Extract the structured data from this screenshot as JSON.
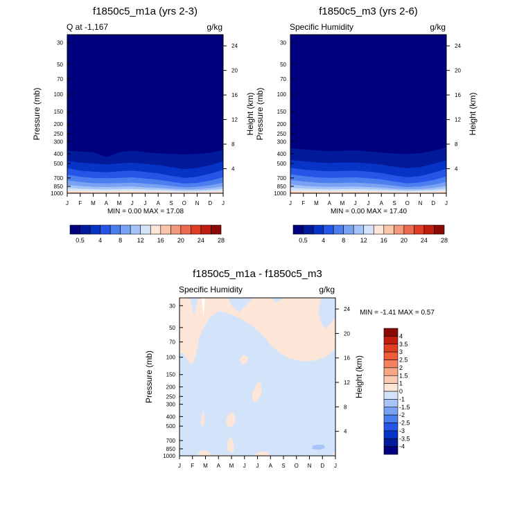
{
  "chart_data": [
    {
      "type": "contour",
      "title": "f1850c5_m1a (yrs 2-3)",
      "left_label": "Q at -1,167",
      "right_label": "g/kg",
      "ylabel": "Pressure (mb)",
      "y2label": "Height (km)",
      "stats": "MIN =   0.00 MAX =  17.08",
      "x_tick_labels": [
        "J",
        "F",
        "M",
        "A",
        "M",
        "J",
        "J",
        "A",
        "S",
        "O",
        "N",
        "D",
        "J"
      ],
      "pressure_ticks": [
        30,
        50,
        70,
        100,
        150,
        200,
        250,
        300,
        400,
        500,
        700,
        850,
        1000
      ],
      "height_ticks": [
        4,
        8,
        12,
        16,
        20,
        24
      ],
      "ylim": [
        25,
        1000
      ],
      "colorbar_labels": [
        "0.5",
        "4",
        "8",
        "12",
        "16",
        "20",
        "24",
        "28"
      ],
      "colorbar_colors": [
        "#00007f",
        "#001a9a",
        "#0733c6",
        "#2555e6",
        "#4d7ef0",
        "#7aa2f3",
        "#a6c4f7",
        "#d3e4fa",
        "#fde6d8",
        "#f9c5ac",
        "#f3987c",
        "#ec6b4e",
        "#e03d25",
        "#be1d10",
        "#8c0a05"
      ],
      "levels": [
        {
          "color": "#001a9a",
          "top_p": [
            370,
            380,
            385,
            430,
            385,
            370,
            385,
            395,
            400,
            405,
            400,
            390,
            365
          ]
        },
        {
          "color": "#0733c6",
          "top_p": [
            470,
            490,
            500,
            510,
            500,
            490,
            505,
            520,
            545,
            570,
            555,
            520,
            475
          ]
        },
        {
          "color": "#2555e6",
          "top_p": [
            560,
            590,
            605,
            615,
            600,
            590,
            610,
            630,
            665,
            700,
            680,
            635,
            580
          ]
        },
        {
          "color": "#4d7ef0",
          "top_p": [
            650,
            680,
            700,
            705,
            700,
            690,
            710,
            730,
            765,
            800,
            785,
            745,
            690
          ]
        },
        {
          "color": "#7aa2f3",
          "top_p": [
            740,
            770,
            790,
            795,
            790,
            780,
            800,
            815,
            845,
            870,
            860,
            830,
            780
          ]
        },
        {
          "color": "#a6c4f7",
          "top_p": [
            820,
            845,
            860,
            865,
            860,
            855,
            870,
            880,
            900,
            915,
            910,
            890,
            855
          ]
        },
        {
          "color": "#d3e4fa",
          "top_p": [
            885,
            900,
            910,
            915,
            910,
            905,
            915,
            920,
            935,
            945,
            940,
            930,
            905
          ]
        },
        {
          "color": "#fde6d8",
          "top_p": [
            940,
            945,
            950,
            955,
            950,
            950,
            955,
            958,
            965,
            970,
            968,
            962,
            950
          ]
        },
        {
          "color": "#f9c5ac",
          "top_p": [
            972,
            975,
            978,
            980,
            978,
            977,
            980,
            982,
            985,
            988,
            987,
            984,
            978
          ]
        },
        {
          "color": "#ec6b4e",
          "top_p": [
            990,
            991,
            992,
            993,
            992,
            992,
            993,
            994,
            995,
            996,
            996,
            995,
            992
          ]
        }
      ]
    },
    {
      "type": "contour",
      "title": "f1850c5_m3 (yrs 2-6)",
      "left_label": "Specific Humidity",
      "right_label": "g/kg",
      "ylabel": "Pressure (mb)",
      "y2label": "Height (km)",
      "stats": "MIN =   0.00 MAX =  17.40",
      "x_tick_labels": [
        "J",
        "F",
        "M",
        "A",
        "M",
        "J",
        "J",
        "A",
        "S",
        "O",
        "N",
        "D",
        "J"
      ],
      "pressure_ticks": [
        30,
        50,
        70,
        100,
        150,
        200,
        250,
        300,
        400,
        500,
        700,
        850,
        1000
      ],
      "height_ticks": [
        4,
        8,
        12,
        16,
        20,
        24
      ],
      "ylim": [
        25,
        1000
      ],
      "colorbar_labels": [
        "0.5",
        "4",
        "8",
        "12",
        "16",
        "20",
        "24",
        "28"
      ],
      "colorbar_colors": [
        "#00007f",
        "#001a9a",
        "#0733c6",
        "#2555e6",
        "#4d7ef0",
        "#7aa2f3",
        "#a6c4f7",
        "#d3e4fa",
        "#fde6d8",
        "#f9c5ac",
        "#f3987c",
        "#ec6b4e",
        "#e03d25",
        "#be1d10",
        "#8c0a05"
      ],
      "levels": [
        {
          "color": "#001a9a",
          "top_p": [
            350,
            360,
            368,
            375,
            372,
            368,
            378,
            388,
            398,
            402,
            395,
            372,
            345
          ]
        },
        {
          "color": "#0733c6",
          "top_p": [
            460,
            475,
            488,
            495,
            490,
            488,
            498,
            515,
            540,
            560,
            545,
            505,
            462
          ]
        },
        {
          "color": "#2555e6",
          "top_p": [
            555,
            575,
            590,
            600,
            595,
            590,
            605,
            625,
            660,
            690,
            670,
            620,
            565
          ]
        },
        {
          "color": "#4d7ef0",
          "top_p": [
            645,
            670,
            690,
            700,
            695,
            690,
            705,
            725,
            760,
            795,
            778,
            735,
            675
          ]
        },
        {
          "color": "#7aa2f3",
          "top_p": [
            735,
            760,
            780,
            790,
            785,
            780,
            795,
            810,
            840,
            865,
            855,
            820,
            765
          ]
        },
        {
          "color": "#a6c4f7",
          "top_p": [
            815,
            840,
            855,
            862,
            858,
            854,
            865,
            875,
            898,
            912,
            906,
            885,
            845
          ]
        },
        {
          "color": "#d3e4fa",
          "top_p": [
            880,
            896,
            906,
            912,
            908,
            905,
            912,
            918,
            932,
            942,
            938,
            926,
            898
          ]
        },
        {
          "color": "#fde6d8",
          "top_p": [
            938,
            944,
            949,
            953,
            950,
            949,
            953,
            957,
            964,
            969,
            967,
            960,
            946
          ]
        },
        {
          "color": "#f9c5ac",
          "top_p": [
            970,
            974,
            977,
            979,
            977,
            976,
            979,
            981,
            985,
            987,
            986,
            983,
            975
          ]
        },
        {
          "color": "#ec6b4e",
          "top_p": [
            989,
            990,
            991,
            992,
            992,
            991,
            992,
            993,
            995,
            996,
            995,
            994,
            990
          ]
        }
      ]
    },
    {
      "type": "contour",
      "title": "f1850c5_m1a - f1850c5_m3",
      "left_label": "Specific Humidity",
      "right_label": "g/kg",
      "ylabel": "Pressure (mb)",
      "y2label": "Height (km)",
      "stats": "MIN =  -1.41 MAX =   0.57",
      "x_tick_labels": [
        "J",
        "F",
        "M",
        "A",
        "M",
        "J",
        "J",
        "A",
        "S",
        "O",
        "N",
        "D",
        "J"
      ],
      "pressure_ticks": [
        30,
        50,
        70,
        100,
        150,
        200,
        250,
        300,
        400,
        500,
        700,
        850,
        1000
      ],
      "height_ticks": [
        4,
        8,
        12,
        16,
        20,
        24
      ],
      "ylim": [
        25,
        1000
      ],
      "background_color": "#d3e4fa",
      "colorbar_labels": [
        "4",
        "3.5",
        "3",
        "2.5",
        "2",
        "1.5",
        "1",
        "0",
        "-1",
        "-1.5",
        "-2",
        "-2.5",
        "-3",
        "-3.5",
        "-4"
      ],
      "colorbar_colors": [
        "#8c0a05",
        "#be1d10",
        "#e03d25",
        "#f05a38",
        "#f3805f",
        "#f6a683",
        "#fbc9b0",
        "#fde6d8",
        "#d3e4fa",
        "#a6c4f7",
        "#7aa2f3",
        "#4d7ef0",
        "#2555e6",
        "#0733c6",
        "#001a9a",
        "#00007f"
      ],
      "regions": [
        {
          "value_range": "0 to 1",
          "color": "#fde6d8",
          "points": [
            [
              0,
              25
            ],
            [
              0.8,
              25
            ],
            [
              1.1,
              38
            ],
            [
              1.45,
              25
            ],
            [
              3.8,
              25
            ],
            [
              4.0,
              30
            ],
            [
              4.6,
              35
            ],
            [
              5.3,
              28
            ],
            [
              5.7,
              25
            ],
            [
              7.1,
              25
            ],
            [
              7.4,
              28
            ],
            [
              8.0,
              25
            ],
            [
              10.0,
              25
            ],
            [
              10.9,
              25
            ],
            [
              10.7,
              34
            ],
            [
              10.9,
              45
            ],
            [
              11.2,
              52
            ],
            [
              11.6,
              46
            ],
            [
              12.0,
              40
            ],
            [
              12,
              82
            ],
            [
              11.4,
              96
            ],
            [
              10.5,
              108
            ],
            [
              9.4,
              110
            ],
            [
              8.4,
              102
            ],
            [
              7.6,
              88
            ],
            [
              6.9,
              72
            ],
            [
              6.6,
              64
            ],
            [
              6.1,
              55
            ],
            [
              5.4,
              46
            ],
            [
              4.6,
              40
            ],
            [
              3.8,
              36
            ],
            [
              3.0,
              34
            ],
            [
              2.3,
              40
            ],
            [
              1.8,
              52
            ],
            [
              1.5,
              64
            ],
            [
              1.4,
              78
            ],
            [
              1.2,
              100
            ],
            [
              1.0,
              118
            ],
            [
              0.6,
              108
            ],
            [
              0.3,
              92
            ],
            [
              0,
              90
            ]
          ]
        },
        {
          "value_range": "0 to 1",
          "color": "#fde6d8",
          "points": [
            [
              4.6,
              105
            ],
            [
              4.9,
              95
            ],
            [
              5.3,
              100
            ],
            [
              5.2,
              115
            ],
            [
              4.8,
              118
            ]
          ]
        },
        {
          "value_range": "0 to 1",
          "color": "#fde6d8",
          "points": [
            [
              5.6,
              270
            ],
            [
              5.6,
              230
            ],
            [
              5.85,
              195
            ],
            [
              6.1,
              175
            ],
            [
              6.3,
              195
            ],
            [
              6.3,
              240
            ],
            [
              6.0,
              275
            ],
            [
              5.8,
              290
            ]
          ]
        },
        {
          "value_range": "0 to 1",
          "color": "#fde6d8",
          "points": [
            [
              3.6,
              480
            ],
            [
              3.6,
              420
            ],
            [
              3.8,
              375
            ],
            [
              4.1,
              365
            ],
            [
              4.3,
              400
            ],
            [
              4.2,
              480
            ],
            [
              3.9,
              520
            ]
          ]
        },
        {
          "value_range": "0 to 1",
          "color": "#fde6d8",
          "points": [
            [
              1.6,
              480
            ],
            [
              1.7,
              400
            ],
            [
              1.85,
              350
            ],
            [
              1.95,
              420
            ],
            [
              1.85,
              510
            ]
          ]
        },
        {
          "value_range": "0 to 1",
          "color": "#fde6d8",
          "points": [
            [
              3.7,
              890
            ],
            [
              3.7,
              720
            ],
            [
              3.9,
              640
            ],
            [
              4.1,
              690
            ],
            [
              4.2,
              860
            ],
            [
              4.1,
              930
            ]
          ]
        },
        {
          "value_range": "0 to 1",
          "color": "#fde6d8",
          "points": [
            [
              1.4,
              1000
            ],
            [
              1.4,
              960
            ],
            [
              1.6,
              900
            ],
            [
              2.0,
              880
            ],
            [
              2.3,
              920
            ],
            [
              2.4,
              1000
            ]
          ]
        },
        {
          "value_range": "0 to 1",
          "color": "#fde6d8",
          "points": [
            [
              5.8,
              1000
            ],
            [
              5.8,
              960
            ],
            [
              6.3,
              900
            ],
            [
              6.8,
              920
            ],
            [
              6.9,
              1000
            ]
          ]
        },
        {
          "value_range": "0 to 1",
          "color": "#fde6d8",
          "points": [
            [
              11.7,
              1000
            ],
            [
              11.8,
              950
            ],
            [
              12,
              930
            ],
            [
              12,
              1000
            ]
          ]
        },
        {
          "value_range": "0 to 1",
          "color": "#fde6d8",
          "points": [
            [
              1.5,
              1000
            ],
            [
              1.6,
              985
            ],
            [
              3.0,
              980
            ],
            [
              4.4,
              988
            ],
            [
              4.5,
              1000
            ]
          ]
        },
        {
          "value_range": "-1 to -1.5",
          "color": "#a6c4f7",
          "points": [
            [
              10.2,
              850
            ],
            [
              10.25,
              790
            ],
            [
              10.6,
              770
            ],
            [
              11.1,
              775
            ],
            [
              11.2,
              830
            ],
            [
              10.8,
              870
            ]
          ]
        },
        {
          "value_range": "above 1",
          "color": "#ffffff",
          "points": [
            [
              1.7,
              25
            ],
            [
              1.95,
              25
            ],
            [
              1.85,
              40
            ]
          ]
        }
      ]
    }
  ]
}
